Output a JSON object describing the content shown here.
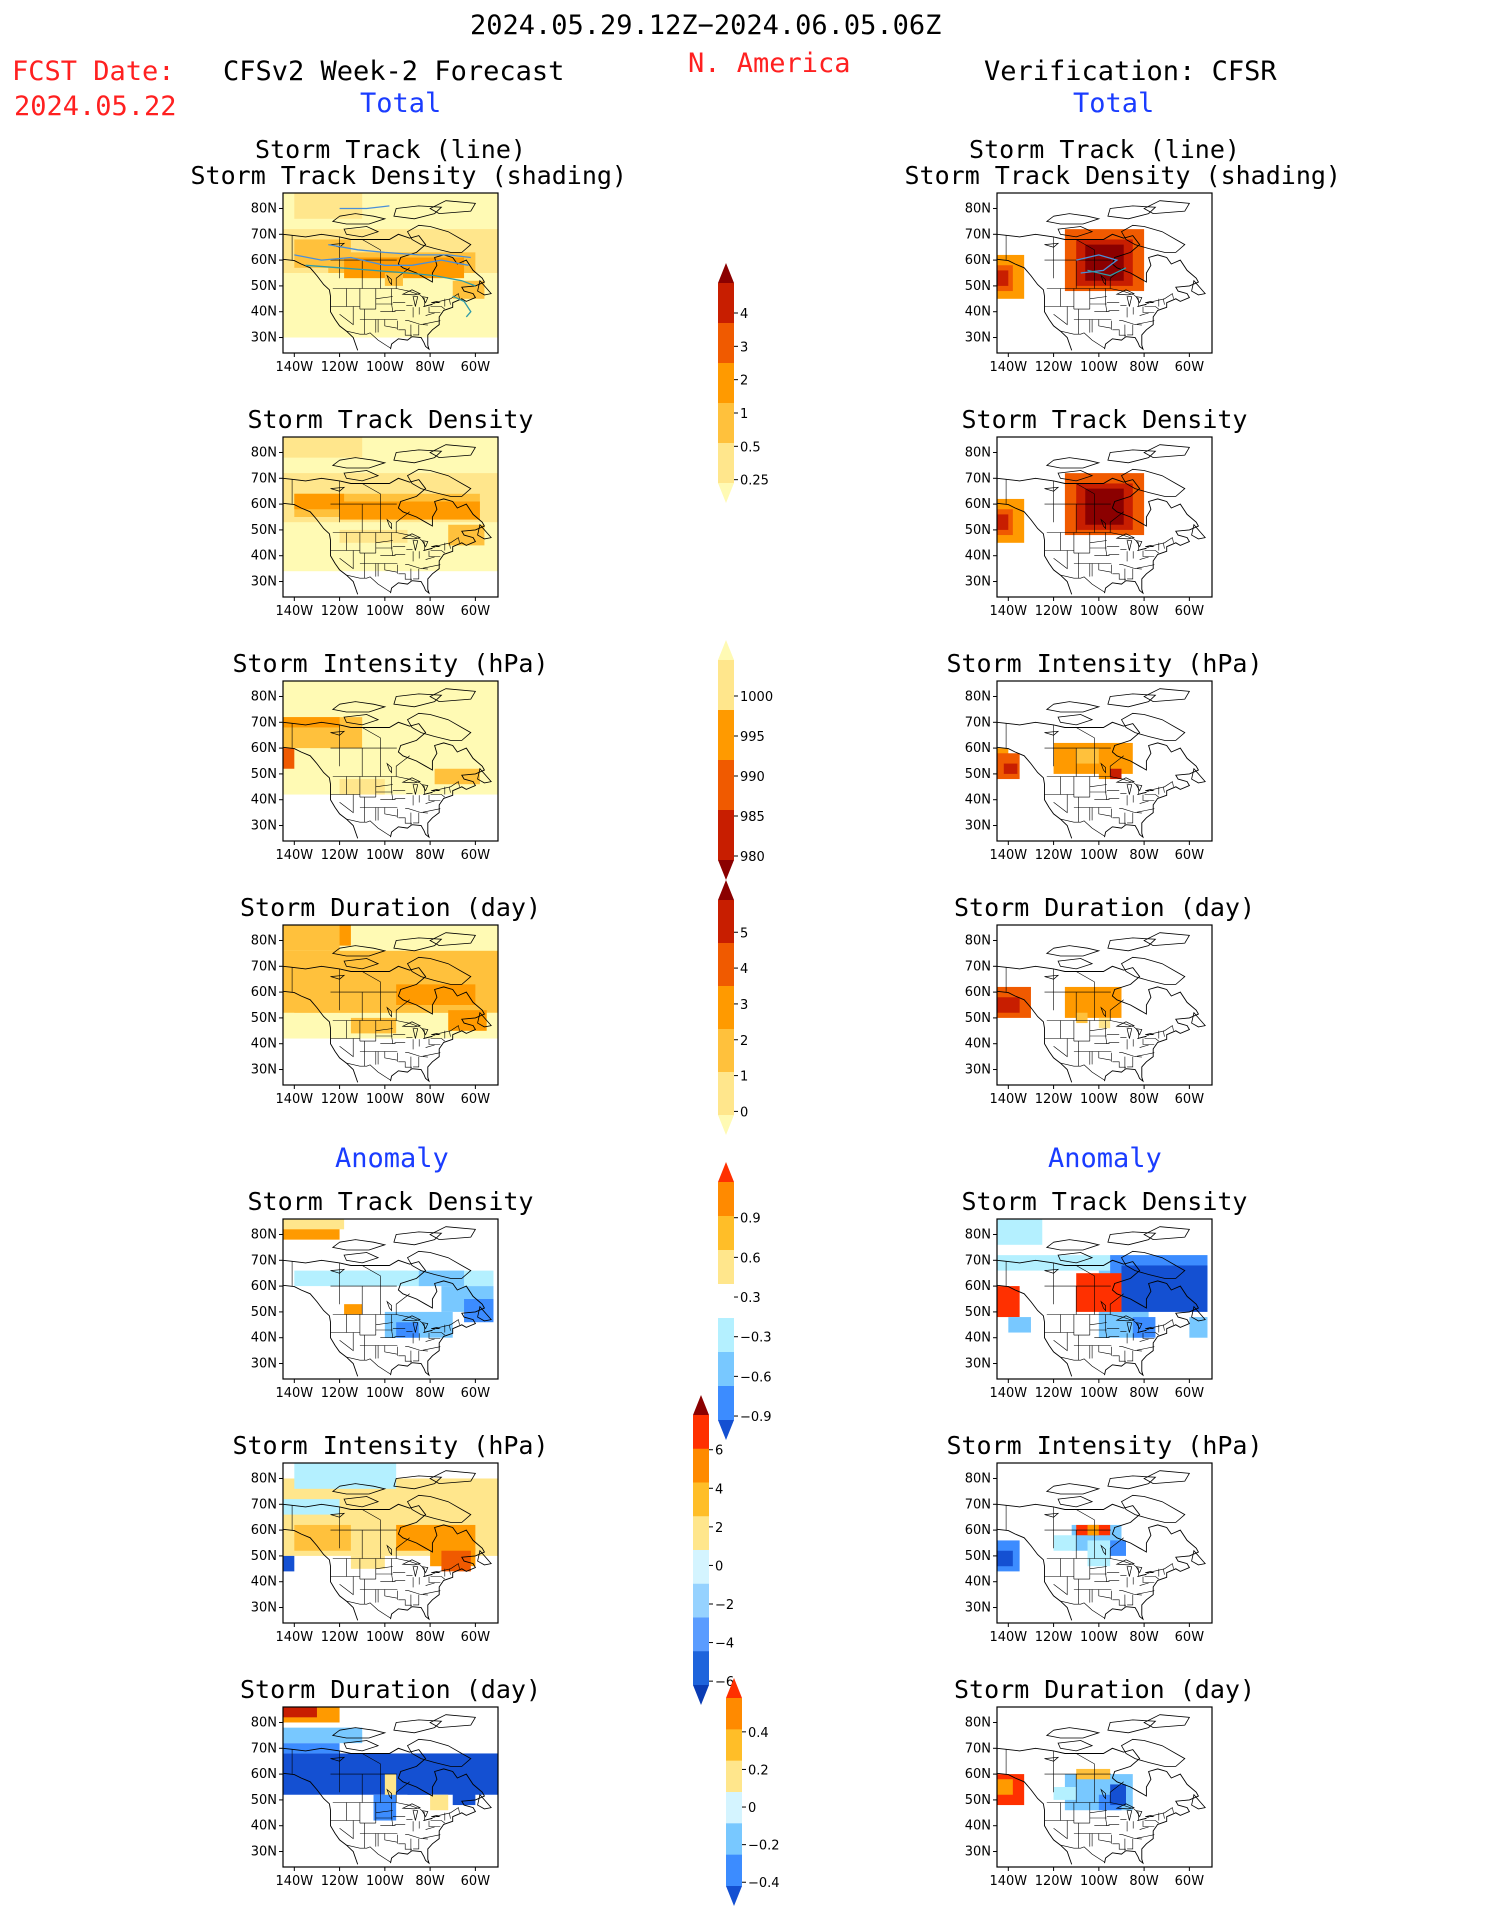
{
  "header": {
    "period": "2024.05.29.12Z−2024.06.05.06Z",
    "region": "N. America",
    "fcst_label": "FCST Date:",
    "fcst_date": "2024.05.22",
    "left_title": "CFSv2 Week-2 Forecast",
    "right_title": "Verification: CFSR",
    "section_total": "Total",
    "section_anomaly": "Anomaly"
  },
  "axes": {
    "lat_labels": [
      "80N",
      "70N",
      "60N",
      "50N",
      "40N",
      "30N"
    ],
    "lon_labels": [
      "140W",
      "120W",
      "100W",
      "80W",
      "60W"
    ]
  },
  "panels": {
    "total": [
      {
        "title_lines": [
          "Storm Track (line)",
          "Storm Track Density (shading)"
        ],
        "field": "track_density_with_lines"
      },
      {
        "title_lines": [
          "Storm Track Density"
        ],
        "field": "track_density"
      },
      {
        "title_lines": [
          "Storm Intensity (hPa)"
        ],
        "field": "intensity"
      },
      {
        "title_lines": [
          "Storm Duration (day)"
        ],
        "field": "duration"
      }
    ],
    "anomaly": [
      {
        "title_lines": [
          "Storm Track Density"
        ],
        "field": "track_density_anom"
      },
      {
        "title_lines": [
          "Storm Intensity (hPa)"
        ],
        "field": "intensity_anom"
      },
      {
        "title_lines": [
          "Storm Duration (day)"
        ],
        "field": "duration_anom"
      }
    ]
  },
  "colorbars": [
    {
      "name": "track-density-colorbar",
      "labels": [
        "4",
        "3",
        "2",
        "1",
        "0.5",
        "0.25"
      ],
      "colors": [
        "#8b0000",
        "#c81e00",
        "#f05a00",
        "#ff9a00",
        "#ffc13c",
        "#ffe68c",
        "#fffab4"
      ]
    },
    {
      "name": "intensity-colorbar",
      "labels": [
        "1000",
        "995",
        "990",
        "985",
        "980"
      ],
      "colors": [
        "#fffab4",
        "#ffe68c",
        "#ff9a00",
        "#f05a00",
        "#c81e00",
        "#8b0000"
      ]
    },
    {
      "name": "duration-colorbar",
      "labels": [
        "5",
        "4",
        "3",
        "2",
        "1",
        "0"
      ],
      "colors": [
        "#8b0000",
        "#c81e00",
        "#f05a00",
        "#ff9a00",
        "#ffc13c",
        "#ffe68c",
        "#fffab4"
      ]
    },
    {
      "name": "track-density-anomaly-colorbar",
      "labels": [
        "0.9",
        "0.6",
        "0.3",
        "−0.3",
        "−0.6",
        "−0.9"
      ],
      "colors": [
        "#ff3000",
        "#ff8a00",
        "#ffbe28",
        "#ffe68c",
        "#ffffff",
        "#b4f0ff",
        "#78c8ff",
        "#3c8cff",
        "#1450d2"
      ]
    },
    {
      "name": "intensity-anomaly-colorbar",
      "labels": [
        "6",
        "4",
        "2",
        "0",
        "−2",
        "−4",
        "−6"
      ],
      "colors": [
        "#8b0000",
        "#ff3000",
        "#ff8a00",
        "#ffbe28",
        "#ffe68c",
        "#d4f4ff",
        "#96d2ff",
        "#5a9cff",
        "#1e64dc",
        "#0a3cb4"
      ]
    },
    {
      "name": "duration-anomaly-colorbar",
      "labels": [
        "0.4",
        "0.2",
        "0",
        "−0.2",
        "−0.4"
      ],
      "colors": [
        "#ff3000",
        "#ff8a00",
        "#ffbe28",
        "#ffe68c",
        "#d4f4ff",
        "#78c8ff",
        "#3c8cff",
        "#1450d2"
      ]
    }
  ]
}
